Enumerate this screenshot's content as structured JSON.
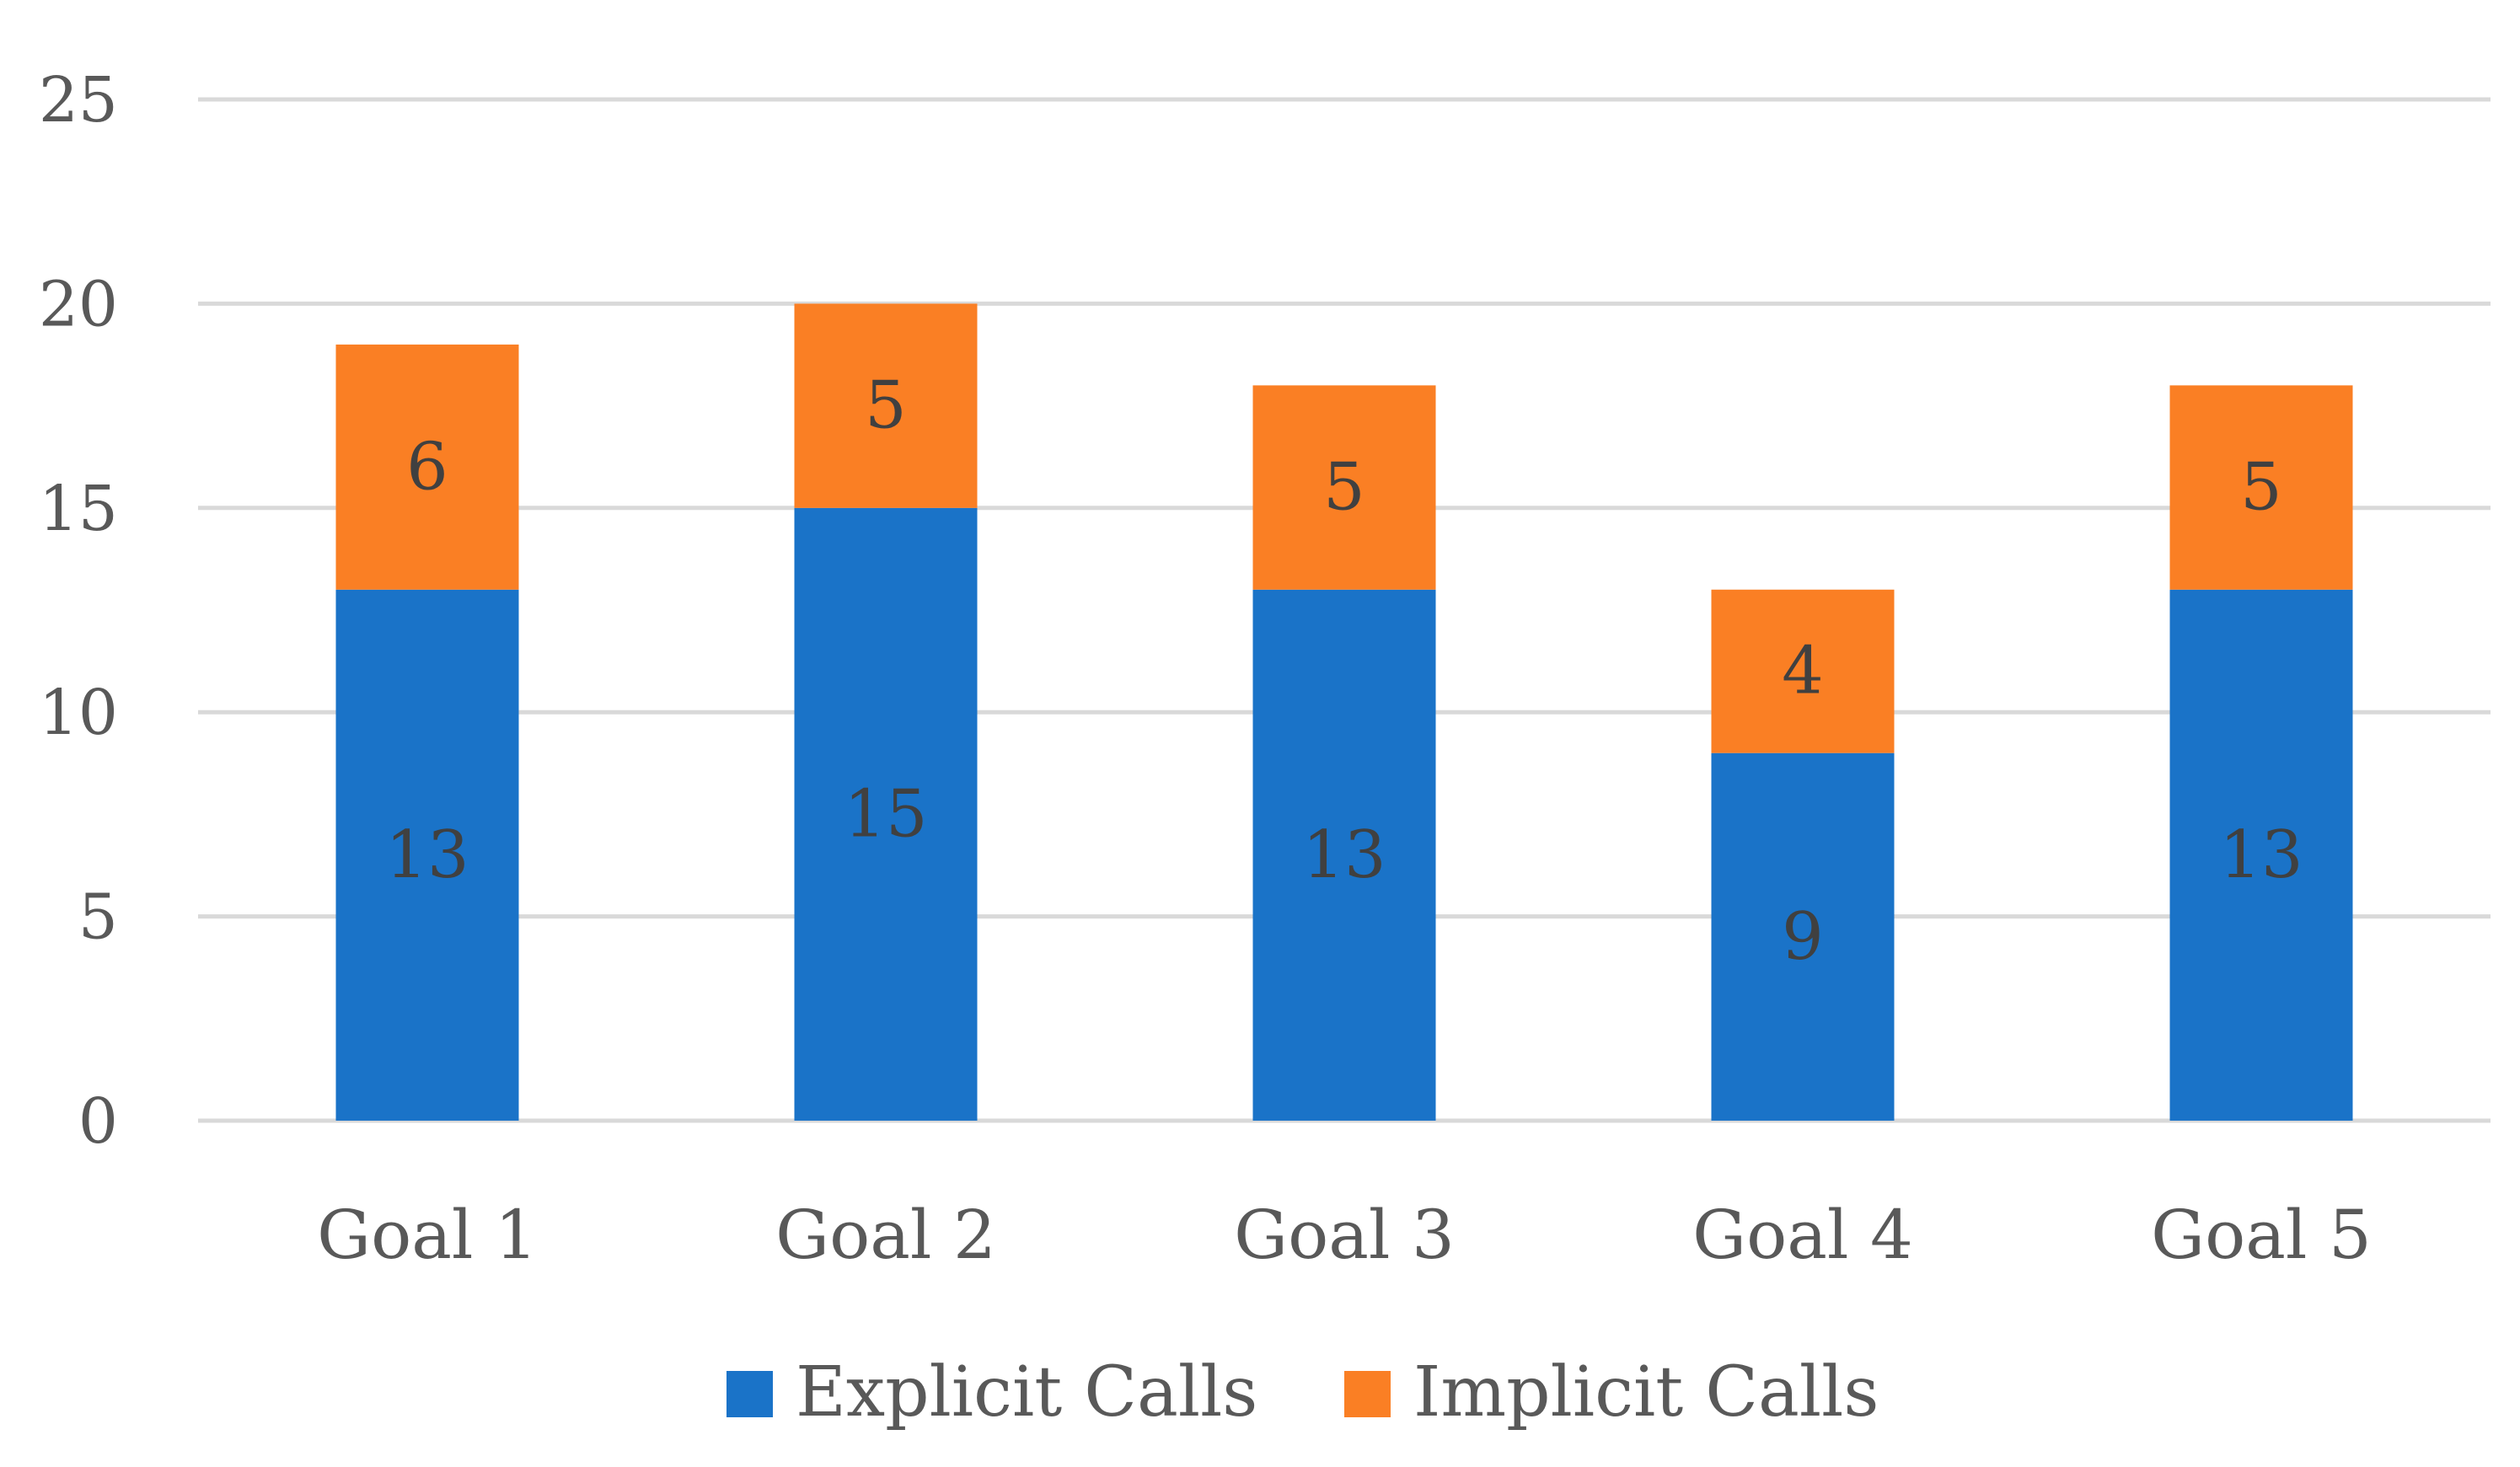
{
  "chart_data": {
    "type": "bar",
    "stacked": true,
    "categories": [
      "Goal 1",
      "Goal 2",
      "Goal 3",
      "Goal 4",
      "Goal 5"
    ],
    "series": [
      {
        "name": "Explicit Calls",
        "color": "#1a73c8",
        "values": [
          13,
          15,
          13,
          9,
          13
        ]
      },
      {
        "name": "Implicit Calls",
        "color": "#fa7f24",
        "values": [
          6,
          5,
          5,
          4,
          5
        ]
      }
    ],
    "y_ticks": [
      "0",
      "5",
      "10",
      "15",
      "20",
      "25"
    ],
    "ylim": [
      0,
      25
    ],
    "grid": true,
    "legend_position": "bottom"
  }
}
